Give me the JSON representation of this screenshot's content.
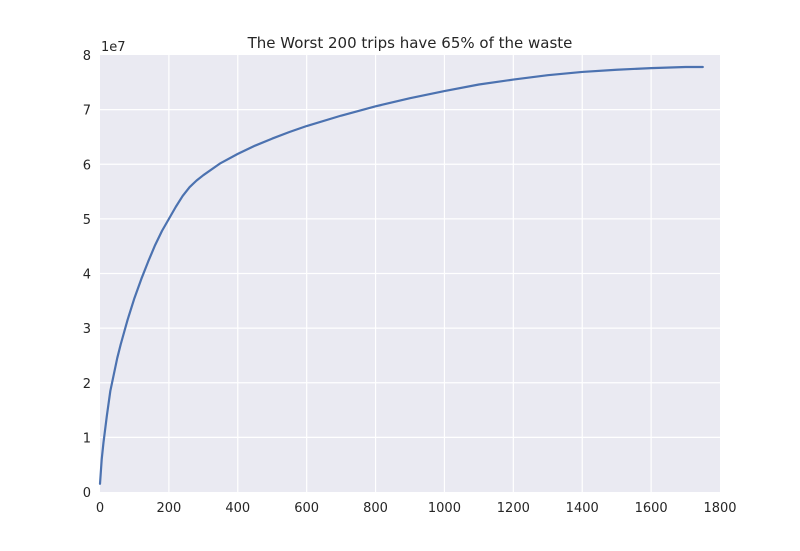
{
  "chart_data": {
    "type": "line",
    "title": "The Worst 200 trips have 65% of the waste",
    "xlabel": "",
    "ylabel": "",
    "xlim": [
      0,
      1800
    ],
    "ylim": [
      0,
      80000000
    ],
    "y_offset_label": "1e7",
    "x_ticks": [
      0,
      200,
      400,
      600,
      800,
      1000,
      1200,
      1400,
      1600,
      1800
    ],
    "x_tick_labels": [
      "0",
      "200",
      "400",
      "600",
      "800",
      "1000",
      "1200",
      "1400",
      "1600",
      "1800"
    ],
    "y_ticks": [
      0,
      10000000,
      20000000,
      30000000,
      40000000,
      50000000,
      60000000,
      70000000,
      80000000
    ],
    "y_tick_labels": [
      "0",
      "1",
      "2",
      "3",
      "4",
      "5",
      "6",
      "7",
      "8"
    ],
    "grid": true,
    "series": [
      {
        "color": "#4c72b0",
        "x": [
          0,
          5,
          10,
          20,
          30,
          40,
          50,
          60,
          80,
          100,
          120,
          140,
          160,
          180,
          200,
          220,
          240,
          260,
          280,
          300,
          350,
          400,
          450,
          500,
          550,
          600,
          700,
          800,
          900,
          1000,
          1100,
          1200,
          1300,
          1400,
          1500,
          1600,
          1700,
          1750
        ],
        "y": [
          1500000,
          6000000,
          9000000,
          14000000,
          18500000,
          21500000,
          24500000,
          27000000,
          31500000,
          35500000,
          39000000,
          42200000,
          45200000,
          47800000,
          50000000,
          52200000,
          54200000,
          55800000,
          57000000,
          58000000,
          60200000,
          61900000,
          63400000,
          64700000,
          65900000,
          67000000,
          68900000,
          70600000,
          72100000,
          73400000,
          74600000,
          75500000,
          76300000,
          76900000,
          77300000,
          77600000,
          77800000,
          77800000
        ]
      }
    ]
  }
}
